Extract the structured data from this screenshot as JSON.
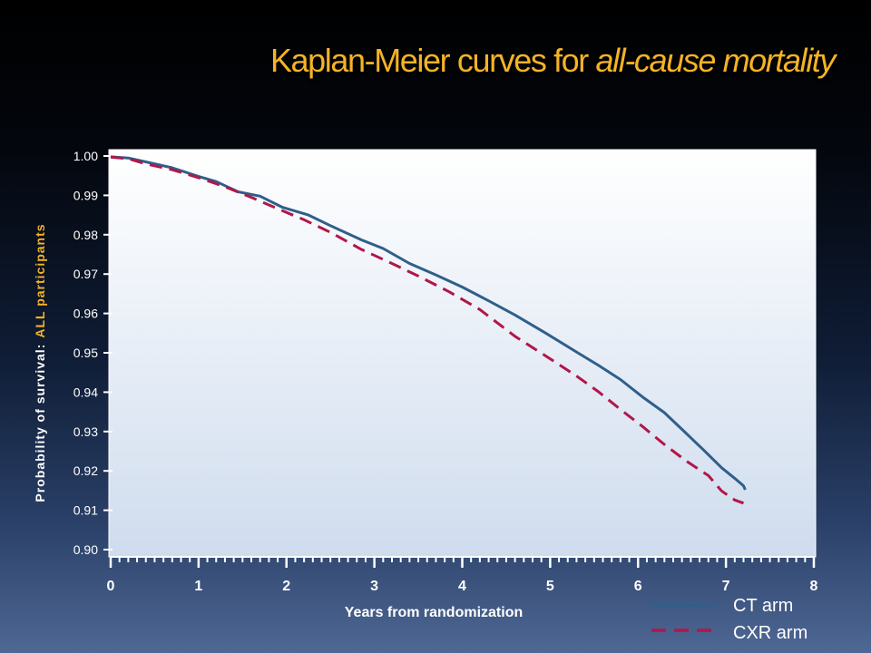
{
  "title": {
    "prefix": "Kaplan-Meier curves for ",
    "emph": "all-cause mortality"
  },
  "colors": {
    "title": "#f5b326",
    "ct": "#2f5f8a",
    "cxr": "#b0174a",
    "highlight": "#f5b326",
    "axis_text": "#ffffff"
  },
  "chart_data": {
    "type": "line",
    "title": "Kaplan-Meier curves for all-cause mortality",
    "xlabel": "Years from randomization",
    "ylabel_prefix": "Probability of survival:",
    "ylabel_highlight": "ALL participants",
    "xlim": [
      0,
      8
    ],
    "ylim": [
      0.9,
      1.0
    ],
    "xticks": [
      0,
      1,
      2,
      3,
      4,
      5,
      6,
      7,
      8
    ],
    "yticks": [
      "0.90",
      "0.91",
      "0.92",
      "0.93",
      "0.94",
      "0.95",
      "0.96",
      "0.97",
      "0.98",
      "0.99",
      "1.00"
    ],
    "grid": false,
    "legend_position": "bottom-right",
    "series": [
      {
        "name": "CT arm",
        "style": "solid",
        "x": [
          0,
          0.2,
          0.4,
          0.7,
          1.0,
          1.2,
          1.45,
          1.7,
          1.95,
          2.25,
          2.5,
          2.85,
          3.1,
          3.4,
          3.7,
          4.0,
          4.3,
          4.6,
          4.95,
          5.3,
          5.55,
          5.8,
          6.05,
          6.3,
          6.55,
          6.75,
          6.95,
          7.1,
          7.2,
          7.22
        ],
        "y": [
          0.9998,
          0.9995,
          0.9985,
          0.997,
          0.9948,
          0.9935,
          0.9909,
          0.9898,
          0.987,
          0.985,
          0.9823,
          0.9787,
          0.9765,
          0.9727,
          0.9698,
          0.9667,
          0.9632,
          0.9596,
          0.955,
          0.9502,
          0.9468,
          0.9432,
          0.9388,
          0.9348,
          0.9295,
          0.9252,
          0.9208,
          0.9181,
          0.9162,
          0.9152
        ]
      },
      {
        "name": "CXR arm",
        "style": "dashed",
        "x": [
          0,
          0.2,
          0.4,
          0.7,
          1.0,
          1.3,
          1.6,
          1.9,
          2.2,
          2.5,
          2.85,
          3.2,
          3.5,
          3.85,
          4.2,
          4.6,
          4.95,
          5.3,
          5.55,
          5.8,
          6.05,
          6.3,
          6.55,
          6.8,
          6.95,
          7.1,
          7.2
        ],
        "y": [
          0.9997,
          0.9993,
          0.998,
          0.9965,
          0.9945,
          0.9922,
          0.9895,
          0.9866,
          0.9838,
          0.9806,
          0.9763,
          0.9727,
          0.9695,
          0.9655,
          0.961,
          0.9542,
          0.9492,
          0.9441,
          0.9401,
          0.9356,
          0.9313,
          0.9267,
          0.9225,
          0.9188,
          0.9149,
          0.9126,
          0.9118
        ]
      }
    ]
  }
}
